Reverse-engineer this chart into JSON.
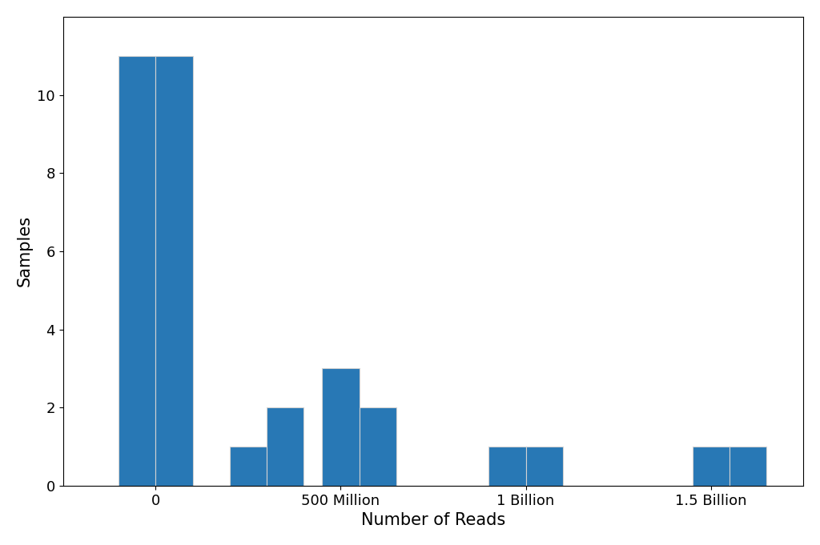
{
  "xlabel": "Number of Reads",
  "ylabel": "Samples",
  "bar_color": "#2878b5",
  "background_color": "#ffffff",
  "ylim": [
    0,
    12
  ],
  "yticks": [
    0,
    2,
    4,
    6,
    8,
    10
  ],
  "xticks": [
    0,
    500000000,
    1000000000,
    1500000000
  ],
  "xticklabels": [
    "0",
    "500 Million",
    "1 Billion",
    "1.5 Billion"
  ],
  "bin_left_edges": [
    -100000000,
    0,
    200000000,
    300000000,
    450000000,
    550000000,
    900000000,
    1000000000,
    1450000000,
    1550000000
  ],
  "bin_widths": [
    100000000,
    100000000,
    100000000,
    100000000,
    100000000,
    100000000,
    100000000,
    100000000,
    100000000,
    100000000
  ],
  "bin_counts": [
    11,
    11,
    1,
    2,
    3,
    2,
    1,
    1,
    1,
    1
  ],
  "title_fontsize": 16,
  "label_fontsize": 15,
  "tick_fontsize": 13
}
